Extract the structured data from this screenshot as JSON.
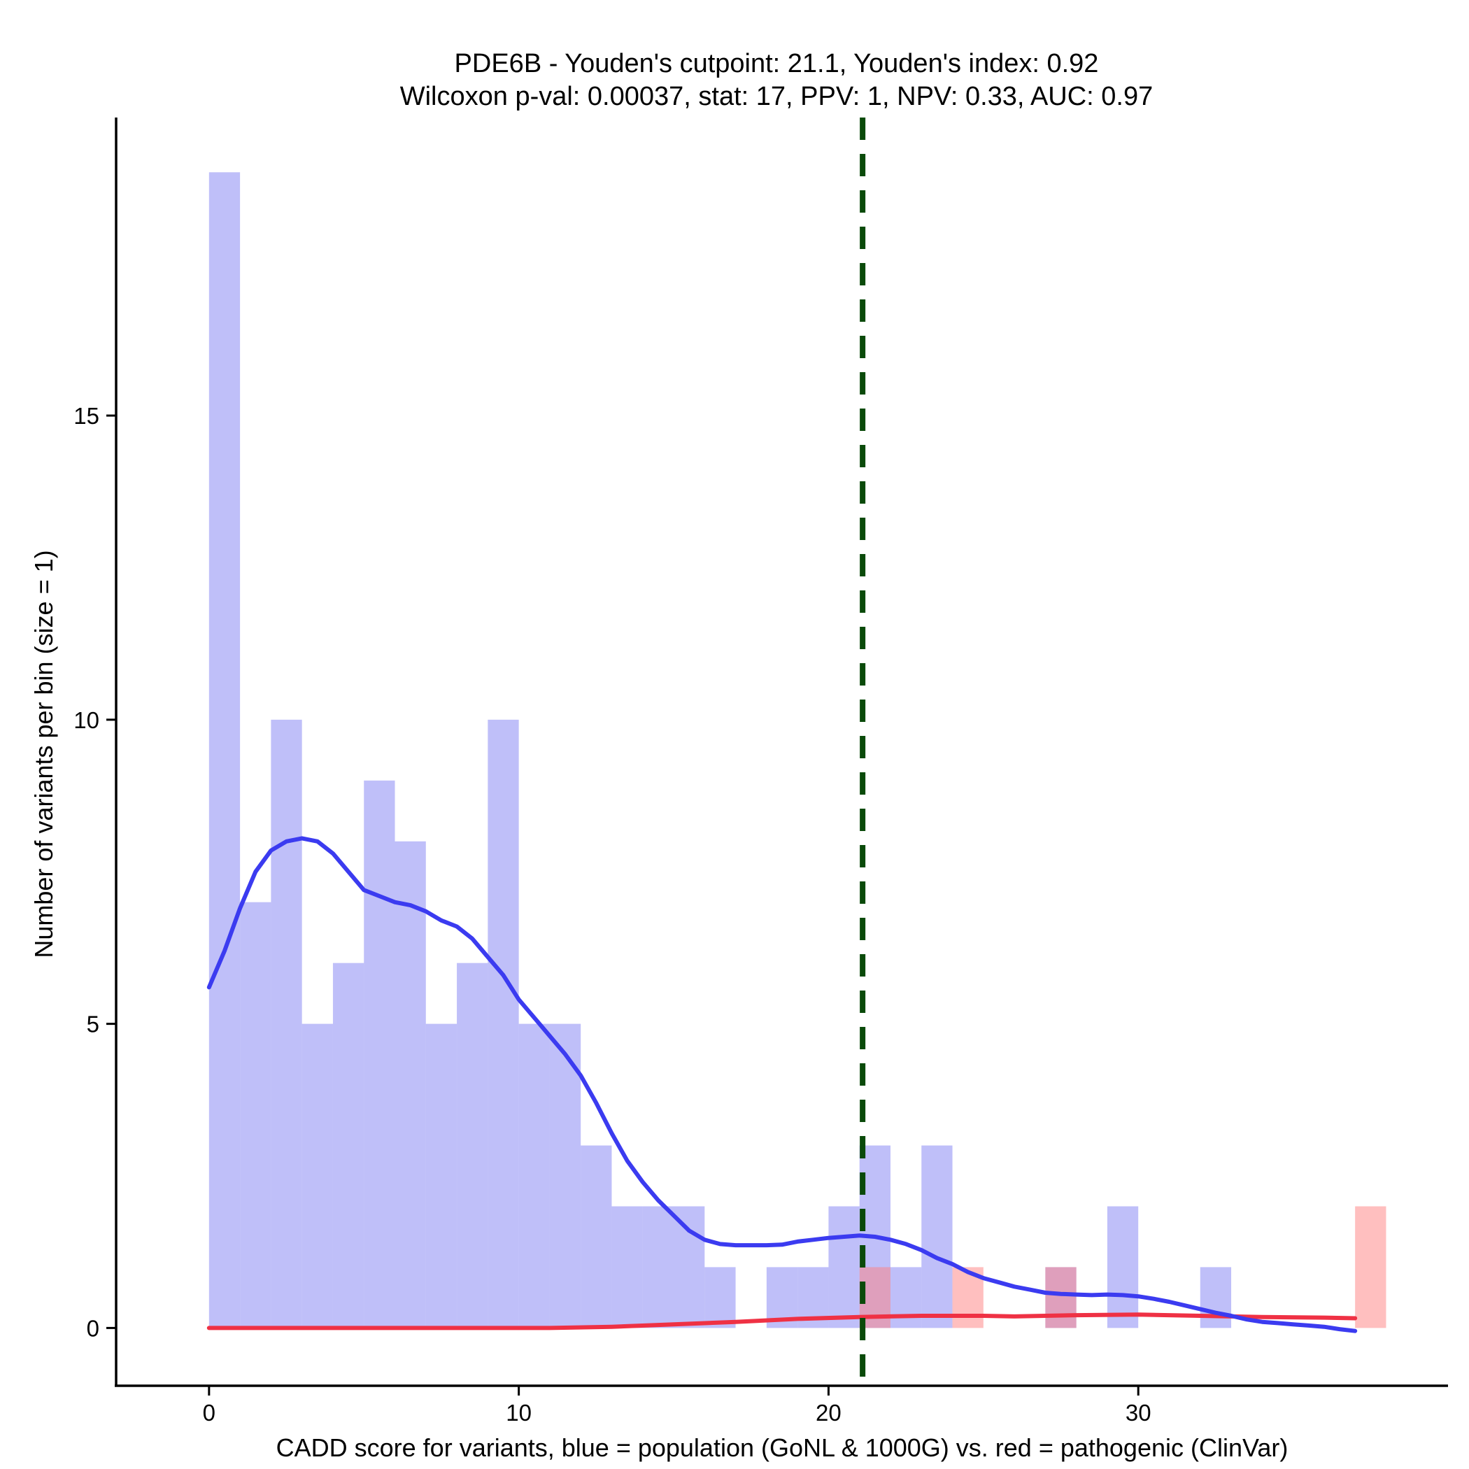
{
  "chart_data": {
    "type": "histogram_with_density",
    "title_line1": "PDE6B - Youden's cutpoint: 21.1, Youden's index: 0.92",
    "title_line2": "Wilcoxon p-val: 0.00037, stat: 17, PPV: 1, NPV: 0.33, AUC: 0.97",
    "xlabel": "CADD score for variants, blue = population (GoNL & 1000G) vs. red = pathogenic (ClinVar)",
    "ylabel": "Number of variants per bin (size = 1)",
    "xlim": [
      -3,
      40
    ],
    "ylim": [
      -0.95,
      19.9
    ],
    "x_ticks": [
      0,
      10,
      20,
      30
    ],
    "x_tick_labels": [
      "0",
      "10",
      "20",
      "30"
    ],
    "y_ticks": [
      0,
      5,
      10,
      15
    ],
    "y_tick_labels": [
      "0",
      "5",
      "10",
      "15"
    ],
    "bin_width": 1,
    "cutpoint": 21.1,
    "colors": {
      "population_bar": "#7f7ff4",
      "pathogenic_bar": "#ff8080",
      "population_line": "#3b3bf0",
      "pathogenic_line": "#ef3144",
      "cutpoint_line": "#0a4a0a"
    },
    "series": [
      {
        "name": "population (GoNL & 1000G)",
        "bins": [
          {
            "x": 0,
            "count": 19
          },
          {
            "x": 1,
            "count": 7
          },
          {
            "x": 2,
            "count": 10
          },
          {
            "x": 3,
            "count": 5
          },
          {
            "x": 4,
            "count": 6
          },
          {
            "x": 5,
            "count": 9
          },
          {
            "x": 6,
            "count": 8
          },
          {
            "x": 7,
            "count": 5
          },
          {
            "x": 8,
            "count": 6
          },
          {
            "x": 9,
            "count": 10
          },
          {
            "x": 10,
            "count": 5
          },
          {
            "x": 11,
            "count": 5
          },
          {
            "x": 12,
            "count": 3
          },
          {
            "x": 13,
            "count": 2
          },
          {
            "x": 14,
            "count": 2
          },
          {
            "x": 15,
            "count": 2
          },
          {
            "x": 16,
            "count": 1
          },
          {
            "x": 18,
            "count": 1
          },
          {
            "x": 19,
            "count": 1
          },
          {
            "x": 20,
            "count": 2
          },
          {
            "x": 21,
            "count": 3
          },
          {
            "x": 22,
            "count": 1
          },
          {
            "x": 23,
            "count": 3
          },
          {
            "x": 27,
            "count": 1
          },
          {
            "x": 29,
            "count": 2
          },
          {
            "x": 32,
            "count": 1
          }
        ],
        "density": [
          [
            0,
            5.6
          ],
          [
            0.5,
            6.2
          ],
          [
            1,
            6.9
          ],
          [
            1.5,
            7.5
          ],
          [
            2,
            7.85
          ],
          [
            2.5,
            8.0
          ],
          [
            3,
            8.05
          ],
          [
            3.5,
            8.0
          ],
          [
            4,
            7.8
          ],
          [
            4.5,
            7.5
          ],
          [
            5,
            7.2
          ],
          [
            5.5,
            7.1
          ],
          [
            6,
            7.0
          ],
          [
            6.5,
            6.95
          ],
          [
            7,
            6.85
          ],
          [
            7.5,
            6.7
          ],
          [
            8,
            6.6
          ],
          [
            8.5,
            6.4
          ],
          [
            9,
            6.1
          ],
          [
            9.5,
            5.8
          ],
          [
            10,
            5.4
          ],
          [
            10.5,
            5.1
          ],
          [
            11,
            4.8
          ],
          [
            11.5,
            4.5
          ],
          [
            12,
            4.15
          ],
          [
            12.5,
            3.7
          ],
          [
            13,
            3.2
          ],
          [
            13.5,
            2.75
          ],
          [
            14,
            2.4
          ],
          [
            14.5,
            2.1
          ],
          [
            15,
            1.85
          ],
          [
            15.5,
            1.6
          ],
          [
            16,
            1.45
          ],
          [
            16.5,
            1.38
          ],
          [
            17,
            1.36
          ],
          [
            17.5,
            1.36
          ],
          [
            18,
            1.36
          ],
          [
            18.5,
            1.37
          ],
          [
            19,
            1.42
          ],
          [
            19.5,
            1.45
          ],
          [
            20,
            1.48
          ],
          [
            20.5,
            1.5
          ],
          [
            21,
            1.52
          ],
          [
            21.5,
            1.5
          ],
          [
            22,
            1.45
          ],
          [
            22.5,
            1.38
          ],
          [
            23,
            1.28
          ],
          [
            23.5,
            1.15
          ],
          [
            24,
            1.05
          ],
          [
            24.5,
            0.92
          ],
          [
            25,
            0.82
          ],
          [
            25.5,
            0.75
          ],
          [
            26,
            0.68
          ],
          [
            26.5,
            0.63
          ],
          [
            27,
            0.58
          ],
          [
            27.5,
            0.56
          ],
          [
            28,
            0.55
          ],
          [
            28.5,
            0.54
          ],
          [
            29,
            0.55
          ],
          [
            29.5,
            0.54
          ],
          [
            30,
            0.52
          ],
          [
            30.5,
            0.48
          ],
          [
            31,
            0.43
          ],
          [
            31.5,
            0.37
          ],
          [
            32,
            0.31
          ],
          [
            32.5,
            0.25
          ],
          [
            33,
            0.2
          ],
          [
            33.5,
            0.14
          ],
          [
            34,
            0.1
          ],
          [
            34.5,
            0.08
          ],
          [
            35,
            0.06
          ],
          [
            35.5,
            0.04
          ],
          [
            36,
            0.02
          ],
          [
            36.5,
            -0.02
          ],
          [
            37,
            -0.05
          ]
        ]
      },
      {
        "name": "pathogenic (ClinVar)",
        "bins": [
          {
            "x": 21,
            "count": 1
          },
          {
            "x": 24,
            "count": 1
          },
          {
            "x": 27,
            "count": 1
          },
          {
            "x": 37,
            "count": 2
          }
        ],
        "density": [
          [
            0,
            0.0
          ],
          [
            5,
            0.0
          ],
          [
            10,
            0.0
          ],
          [
            11,
            0.0
          ],
          [
            13,
            0.02
          ],
          [
            15,
            0.06
          ],
          [
            17,
            0.1
          ],
          [
            19,
            0.15
          ],
          [
            21,
            0.18
          ],
          [
            23,
            0.2
          ],
          [
            25,
            0.2
          ],
          [
            26,
            0.19
          ],
          [
            28,
            0.21
          ],
          [
            30,
            0.22
          ],
          [
            32,
            0.2
          ],
          [
            34,
            0.18
          ],
          [
            36,
            0.17
          ],
          [
            37,
            0.16
          ]
        ]
      }
    ]
  }
}
